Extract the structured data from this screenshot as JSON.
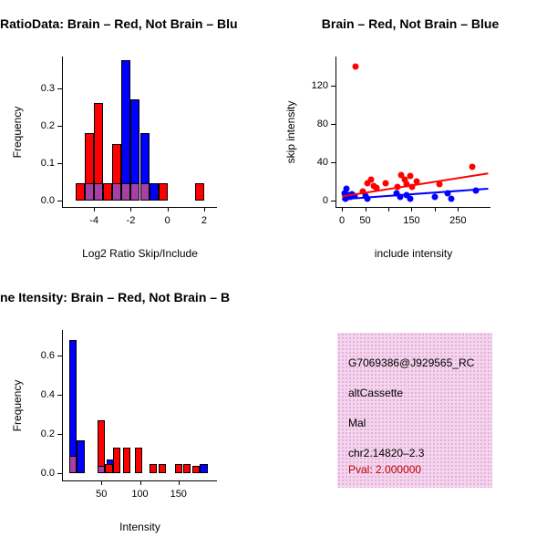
{
  "colors": {
    "red": "#FF0000",
    "blue": "#0000FF",
    "overlap": "#A640A6",
    "box_bg": "#F5D4ED",
    "pval": "#C00000",
    "axis": "#000000"
  },
  "chart_data": [
    {
      "type": "bar",
      "subtype": "histogram",
      "title": "RatioData: Brain – Red, Not Brain – Blu",
      "title_align": "left",
      "xlabel": "Log2 Ratio Skip/Include",
      "ylabel": "Frequency",
      "xlim": [
        -5.7,
        2.7
      ],
      "ylim": [
        -0.018,
        0.385
      ],
      "grid": false,
      "legend": "none",
      "bin_width": 0.5,
      "xticks": [
        {
          "v": -4,
          "label": "-4"
        },
        {
          "v": -2,
          "label": "-2"
        },
        {
          "v": 0,
          "label": "0"
        },
        {
          "v": 2,
          "label": "2"
        }
      ],
      "yticks": [
        {
          "v": 0,
          "label": "0.0"
        },
        {
          "v": 0.1,
          "label": "0.1"
        },
        {
          "v": 0.2,
          "label": "0.2"
        },
        {
          "v": 0.3,
          "label": "0.3"
        }
      ],
      "series": [
        {
          "name": "brain-red",
          "color": "#FF0000",
          "bars": [
            {
              "x": -5.0,
              "h": 0.046
            },
            {
              "x": -4.5,
              "h": 0.18
            },
            {
              "x": -4.0,
              "h": 0.26
            },
            {
              "x": -3.5,
              "h": 0.046
            },
            {
              "x": -3.0,
              "h": 0.15
            },
            {
              "x": -2.0,
              "h": 0.046
            },
            {
              "x": -0.5,
              "h": 0.046
            },
            {
              "x": 1.5,
              "h": 0.046
            }
          ]
        },
        {
          "name": "notbrain-blue",
          "color": "#0000FF",
          "bars": [
            {
              "x": -2.5,
              "h": 0.375
            },
            {
              "x": -2.0,
              "h": 0.27
            },
            {
              "x": -1.5,
              "h": 0.18
            },
            {
              "x": -1.0,
              "h": 0.046
            }
          ]
        },
        {
          "name": "overlap",
          "color": "#A640A6",
          "bars": [
            {
              "x": -4.5,
              "h": 0.046
            },
            {
              "x": -4.0,
              "h": 0.046
            },
            {
              "x": -3.0,
              "h": 0.046
            },
            {
              "x": -2.5,
              "h": 0.046
            },
            {
              "x": -2.0,
              "h": 0.046
            },
            {
              "x": -1.5,
              "h": 0.046
            }
          ]
        }
      ]
    },
    {
      "type": "scatter",
      "title": "Brain – Red, Not Brain – Blue",
      "title_align": "center",
      "xlabel": "include intensity",
      "ylabel": "skip intensity",
      "xlim": [
        -12,
        320
      ],
      "ylim": [
        -7,
        150
      ],
      "grid": false,
      "legend": "none",
      "xticks": [
        {
          "v": 0,
          "label": "0"
        },
        {
          "v": 50,
          "label": "50"
        },
        {
          "v": 100,
          "label": ""
        },
        {
          "v": 150,
          "label": "150"
        },
        {
          "v": 200,
          "label": ""
        },
        {
          "v": 250,
          "label": "250"
        }
      ],
      "yticks": [
        {
          "v": 0,
          "label": "0"
        },
        {
          "v": 40,
          "label": "40"
        },
        {
          "v": 80,
          "label": "80"
        },
        {
          "v": 120,
          "label": "120"
        }
      ],
      "series": [
        {
          "name": "brain-red",
          "color": "#FF0000",
          "points": [
            [
              30,
              140
            ],
            [
              45,
              9
            ],
            [
              55,
              18
            ],
            [
              62,
              22
            ],
            [
              68,
              15
            ],
            [
              75,
              13
            ],
            [
              95,
              18
            ],
            [
              120,
              14
            ],
            [
              128,
              26
            ],
            [
              135,
              22
            ],
            [
              140,
              17
            ],
            [
              148,
              25
            ],
            [
              152,
              14
            ],
            [
              160,
              20
            ],
            [
              210,
              17
            ],
            [
              280,
              35
            ]
          ]
        },
        {
          "name": "notbrain-blue",
          "color": "#0000FF",
          "points": [
            [
              5,
              7
            ],
            [
              8,
              2
            ],
            [
              10,
              12
            ],
            [
              14,
              5
            ],
            [
              18,
              3
            ],
            [
              22,
              6
            ],
            [
              28,
              4
            ],
            [
              50,
              4
            ],
            [
              55,
              2
            ],
            [
              118,
              7
            ],
            [
              125,
              3
            ],
            [
              140,
              5
            ],
            [
              148,
              2
            ],
            [
              200,
              3
            ],
            [
              228,
              7
            ],
            [
              235,
              2
            ],
            [
              288,
              10
            ]
          ]
        }
      ],
      "lines": [
        {
          "name": "red-fit",
          "color": "#FF0000",
          "x1": 0,
          "y1": 4,
          "x2": 315,
          "y2": 28
        },
        {
          "name": "blue-fit",
          "color": "#0000FF",
          "x1": 0,
          "y1": 1,
          "x2": 315,
          "y2": 12
        }
      ]
    },
    {
      "type": "bar",
      "subtype": "histogram",
      "title": "ne Itensity: Brain – Red, Not Brain – B",
      "title_align": "left",
      "xlabel": "Intensity",
      "ylabel": "Frequency",
      "xlim": [
        0,
        200
      ],
      "ylim": [
        -0.035,
        0.73
      ],
      "grid": false,
      "legend": "none",
      "bin_width": 10,
      "xticks": [
        {
          "v": 50,
          "label": "50"
        },
        {
          "v": 100,
          "label": "100"
        },
        {
          "v": 150,
          "label": "150"
        }
      ],
      "yticks": [
        {
          "v": 0,
          "label": "0.0"
        },
        {
          "v": 0.2,
          "label": "0.2"
        },
        {
          "v": 0.4,
          "label": "0.4"
        },
        {
          "v": 0.6,
          "label": "0.6"
        }
      ],
      "series": [
        {
          "name": "notbrain-blue",
          "color": "#0000FF",
          "bars": [
            {
              "x": 8,
              "h": 0.68
            },
            {
              "x": 18,
              "h": 0.17
            },
            {
              "x": 57,
              "h": 0.07
            },
            {
              "x": 178,
              "h": 0.05
            }
          ]
        },
        {
          "name": "brain-red",
          "color": "#FF0000",
          "bars": [
            {
              "x": 45,
              "h": 0.27
            },
            {
              "x": 55,
              "h": 0.05
            },
            {
              "x": 65,
              "h": 0.13
            },
            {
              "x": 78,
              "h": 0.13
            },
            {
              "x": 93,
              "h": 0.13
            },
            {
              "x": 112,
              "h": 0.05
            },
            {
              "x": 124,
              "h": 0.05
            },
            {
              "x": 145,
              "h": 0.05
            },
            {
              "x": 156,
              "h": 0.05
            },
            {
              "x": 168,
              "h": 0.04
            }
          ]
        },
        {
          "name": "overlap",
          "color": "#A640A6",
          "bars": [
            {
              "x": 8,
              "h": 0.09
            },
            {
              "x": 45,
              "h": 0.04
            }
          ]
        }
      ]
    }
  ],
  "info_box": {
    "lines": [
      "G7069386@J929565_RC",
      "altCassette",
      "Mal",
      "chr2.14820–2.3"
    ],
    "pval": "Pval: 2.000000"
  }
}
